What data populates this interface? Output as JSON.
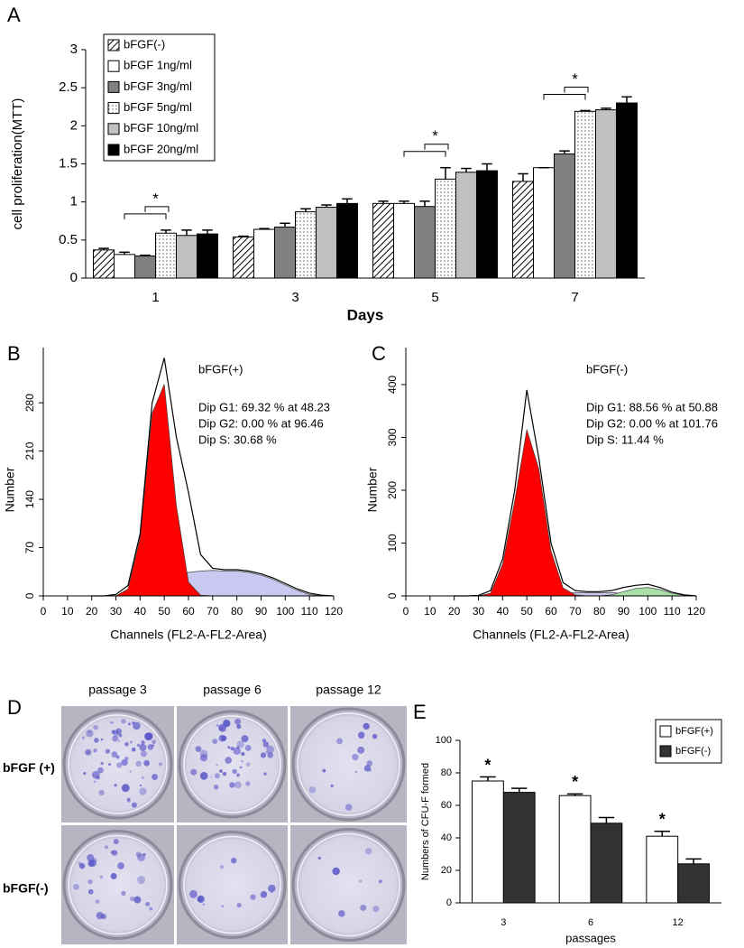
{
  "chart_data": [
    {
      "type": "bar",
      "panel_label": "A",
      "ylabel": "cell proliferation(MTT)",
      "xlabel": "Days",
      "categories": [
        "1",
        "3",
        "5",
        "7"
      ],
      "ylim": [
        0,
        3
      ],
      "yticks": [
        0,
        0.5,
        1,
        1.5,
        2,
        2.5,
        3
      ],
      "legend": "upper left",
      "series": [
        {
          "name": "bFGF(-)",
          "color": "#ffffff",
          "pattern": "hatch",
          "values": [
            0.37,
            0.54,
            0.98,
            1.27
          ],
          "errors": [
            0.02,
            0.01,
            0.03,
            0.1
          ]
        },
        {
          "name": "bFGF 1ng/ml",
          "color": "#ffffff",
          "values": [
            0.31,
            0.64,
            0.98,
            1.45
          ],
          "errors": [
            0.03,
            0.01,
            0.03,
            0
          ]
        },
        {
          "name": "bFGF 3ng/ml",
          "color": "#808080",
          "values": [
            0.29,
            0.67,
            0.94,
            1.63
          ],
          "errors": [
            0.01,
            0.05,
            0.07,
            0.04
          ]
        },
        {
          "name": "bFGF 5ng/ml",
          "color": "#ffffff",
          "pattern": "dots",
          "values": [
            0.59,
            0.87,
            1.3,
            2.19
          ],
          "errors": [
            0.04,
            0.04,
            0.15,
            0.01
          ]
        },
        {
          "name": "bFGF 10ng/ml",
          "color": "#c0c0c0",
          "values": [
            0.56,
            0.93,
            1.39,
            2.21
          ],
          "errors": [
            0.07,
            0.03,
            0.05,
            0.02
          ]
        },
        {
          "name": "bFGF 20ng/ml",
          "color": "#000000",
          "values": [
            0.58,
            0.98,
            1.41,
            2.3
          ],
          "errors": [
            0.05,
            0.06,
            0.09,
            0.08
          ]
        }
      ],
      "annotations": [
        {
          "text": "*",
          "category": "1"
        },
        {
          "text": "*",
          "category": "5"
        },
        {
          "text": "*",
          "category": "7"
        }
      ]
    },
    {
      "type": "area",
      "panel_label": "B",
      "xlabel": "Channels (FL2-A-FL2-Area)",
      "ylabel": "Number",
      "x": [
        20,
        25,
        30,
        35,
        40,
        45,
        50,
        55,
        60,
        65,
        70,
        75,
        80,
        85,
        90,
        95,
        100,
        105,
        110,
        115,
        120
      ],
      "xlim": [
        0,
        120
      ],
      "xticks": [
        0,
        10,
        20,
        30,
        40,
        50,
        60,
        70,
        80,
        90,
        100,
        110,
        120
      ],
      "ylim": [
        0,
        360
      ],
      "yticks": [
        0,
        70,
        140,
        210,
        280
      ],
      "annotations": [
        "bFGF(+)",
        "Dip G1: 69.32 % at 48.23",
        "Dip G2: 0.00 % at 96.46",
        "Dip S: 30.68 %"
      ],
      "series": [
        {
          "color": "#c8c8f0",
          "filled": true,
          "values": [
            0,
            0,
            0,
            0,
            2,
            8,
            18,
            28,
            34,
            36,
            37,
            36,
            36,
            34,
            30,
            24,
            16,
            8,
            2,
            0,
            0
          ]
        },
        {
          "color": "#ff0000",
          "filled": true,
          "values": [
            0,
            0,
            0,
            10,
            84,
            265,
            307,
            131,
            20,
            1,
            0,
            0,
            0,
            0,
            0,
            0,
            0,
            0,
            0,
            0,
            0
          ]
        },
        {
          "color": "#000000",
          "filled": false,
          "values": [
            0,
            0,
            2,
            15,
            90,
            280,
            345,
            230,
            150,
            60,
            40,
            38,
            38,
            36,
            32,
            26,
            18,
            10,
            4,
            1,
            0
          ]
        }
      ]
    },
    {
      "type": "area",
      "panel_label": "C",
      "xlabel": "Channels (FL2-A-FL2-Area)",
      "ylabel": "Number",
      "x": [
        20,
        25,
        30,
        35,
        40,
        45,
        50,
        55,
        60,
        65,
        70,
        75,
        80,
        85,
        90,
        95,
        100,
        105,
        110,
        115,
        120
      ],
      "xlim": [
        0,
        120
      ],
      "xticks": [
        0,
        10,
        20,
        30,
        40,
        50,
        60,
        70,
        80,
        90,
        100,
        110,
        120
      ],
      "ylim": [
        0,
        470
      ],
      "yticks": [
        0,
        100,
        200,
        300,
        400
      ],
      "annotations": [
        "bFGF(-)",
        "Dip G1: 88.56 % at 50.88",
        "Dip G2: 0.00 % at 101.76",
        "Dip S: 11.44 %"
      ],
      "series": [
        {
          "color": "#c8c8f0",
          "filled": true,
          "values": [
            0,
            0,
            0,
            0,
            0,
            2,
            4,
            5,
            6,
            6,
            6,
            6,
            6,
            6,
            5,
            4,
            2,
            1,
            0,
            0,
            0
          ]
        },
        {
          "color": "#a8e0a8",
          "filled": true,
          "values": [
            0,
            0,
            0,
            0,
            0,
            0,
            0,
            0,
            0,
            0,
            0,
            0,
            0,
            2,
            8,
            14,
            16,
            12,
            5,
            1,
            0
          ]
        },
        {
          "color": "#ff0000",
          "filled": true,
          "values": [
            0,
            0,
            0,
            5,
            60,
            180,
            315,
            240,
            85,
            15,
            2,
            0,
            0,
            0,
            0,
            0,
            0,
            0,
            0,
            0,
            0
          ]
        },
        {
          "color": "#000000",
          "filled": false,
          "values": [
            0,
            0,
            1,
            10,
            70,
            200,
            390,
            260,
            100,
            25,
            10,
            8,
            8,
            10,
            16,
            20,
            22,
            16,
            7,
            2,
            0
          ]
        }
      ]
    },
    {
      "type": "bar",
      "panel_label": "E",
      "ylabel": "Numbers of CFU-F formed",
      "xlabel": "passages",
      "categories": [
        "3",
        "6",
        "12"
      ],
      "ylim": [
        0,
        100
      ],
      "yticks": [
        0,
        20,
        40,
        60,
        80,
        100
      ],
      "legend": "upper right",
      "series": [
        {
          "name": "bFGF(+)",
          "color": "#ffffff",
          "values": [
            75,
            66,
            41
          ],
          "errors": [
            2.5,
            1,
            3
          ]
        },
        {
          "name": "bFGF(-)",
          "color": "#333333",
          "values": [
            68,
            49,
            24
          ],
          "errors": [
            2.5,
            3.5,
            3
          ]
        }
      ],
      "annotations": [
        {
          "text": "*",
          "category": "3"
        },
        {
          "text": "*",
          "category": "6"
        },
        {
          "text": "*",
          "category": "12"
        }
      ]
    }
  ],
  "panel_d": {
    "label": "D",
    "columns": [
      "passage 3",
      "passage 6",
      "passage 12"
    ],
    "rows": [
      "bFGF (+)",
      "bFGF(-)"
    ]
  }
}
